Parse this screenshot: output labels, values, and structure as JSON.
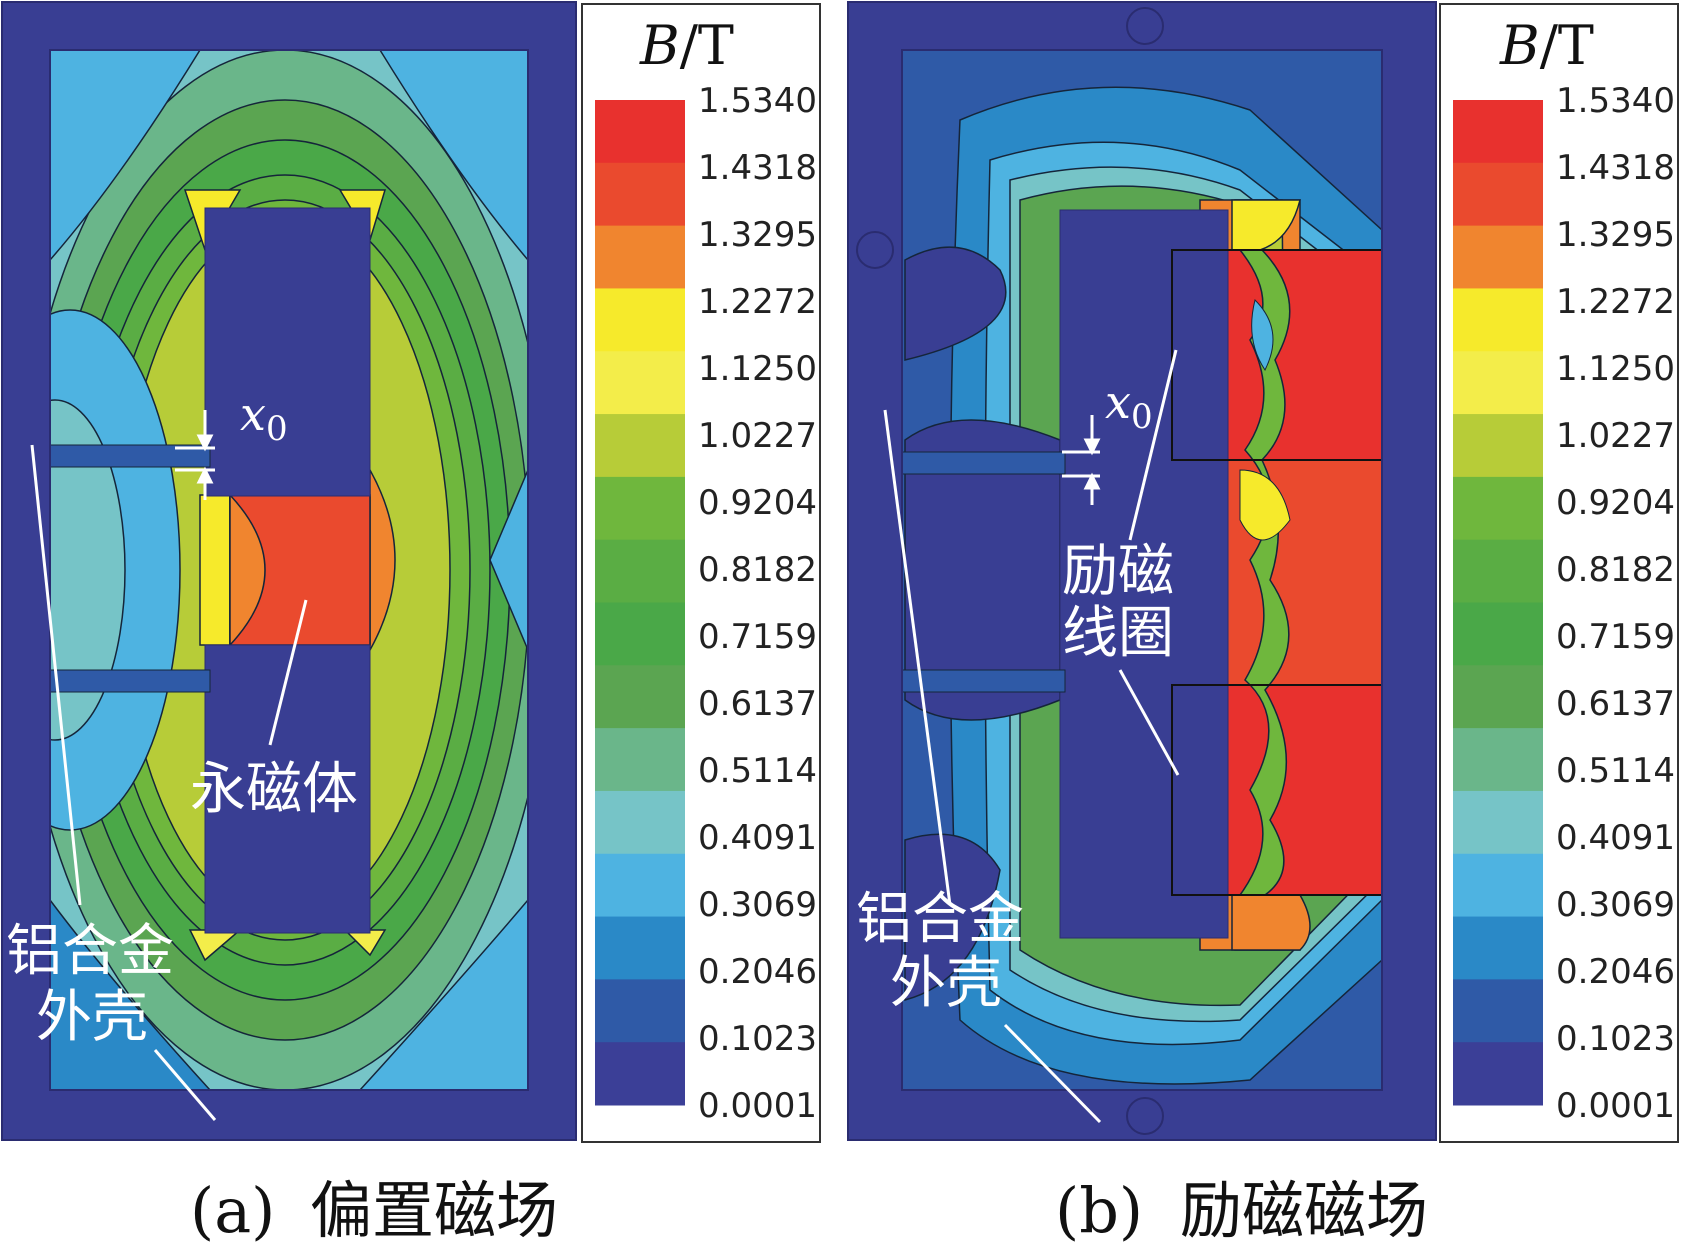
{
  "unit_title": {
    "italic": "B",
    "rest": "/T"
  },
  "scale_ticks": [
    "1.5340",
    "1.4318",
    "1.3295",
    "1.2272",
    "1.1250",
    "1.0227",
    "0.9204",
    "0.8182",
    "0.7159",
    "0.6137",
    "0.5114",
    "0.4091",
    "0.3069",
    "0.2046",
    "0.1023",
    "0.0001"
  ],
  "scale_colors": [
    "#e8312e",
    "#ea4a2e",
    "#f0852f",
    "#f6ea2b",
    "#f3ed4a",
    "#b7cc38",
    "#6fb73d",
    "#5aad44",
    "#4aa848",
    "#5ba551",
    "#6ab68a",
    "#76c4c7",
    "#4eb3e1",
    "#2a89c7",
    "#2f5aa7",
    "#3b3f97"
  ],
  "panels": [
    {
      "id": "a",
      "caption_label": "(a)",
      "caption_text": "偏置磁场",
      "labels": {
        "gap": "x",
        "gap_sub": "0",
        "magnet": "永磁体",
        "shell_line1": "铝合金",
        "shell_line2": "外壳"
      }
    },
    {
      "id": "b",
      "caption_label": "(b)",
      "caption_text": "励磁磁场",
      "labels": {
        "gap": "x",
        "gap_sub": "0",
        "coil_line1": "励磁",
        "coil_line2": "线圈",
        "shell_line1": "铝合金",
        "shell_line2": "外壳"
      }
    }
  ]
}
